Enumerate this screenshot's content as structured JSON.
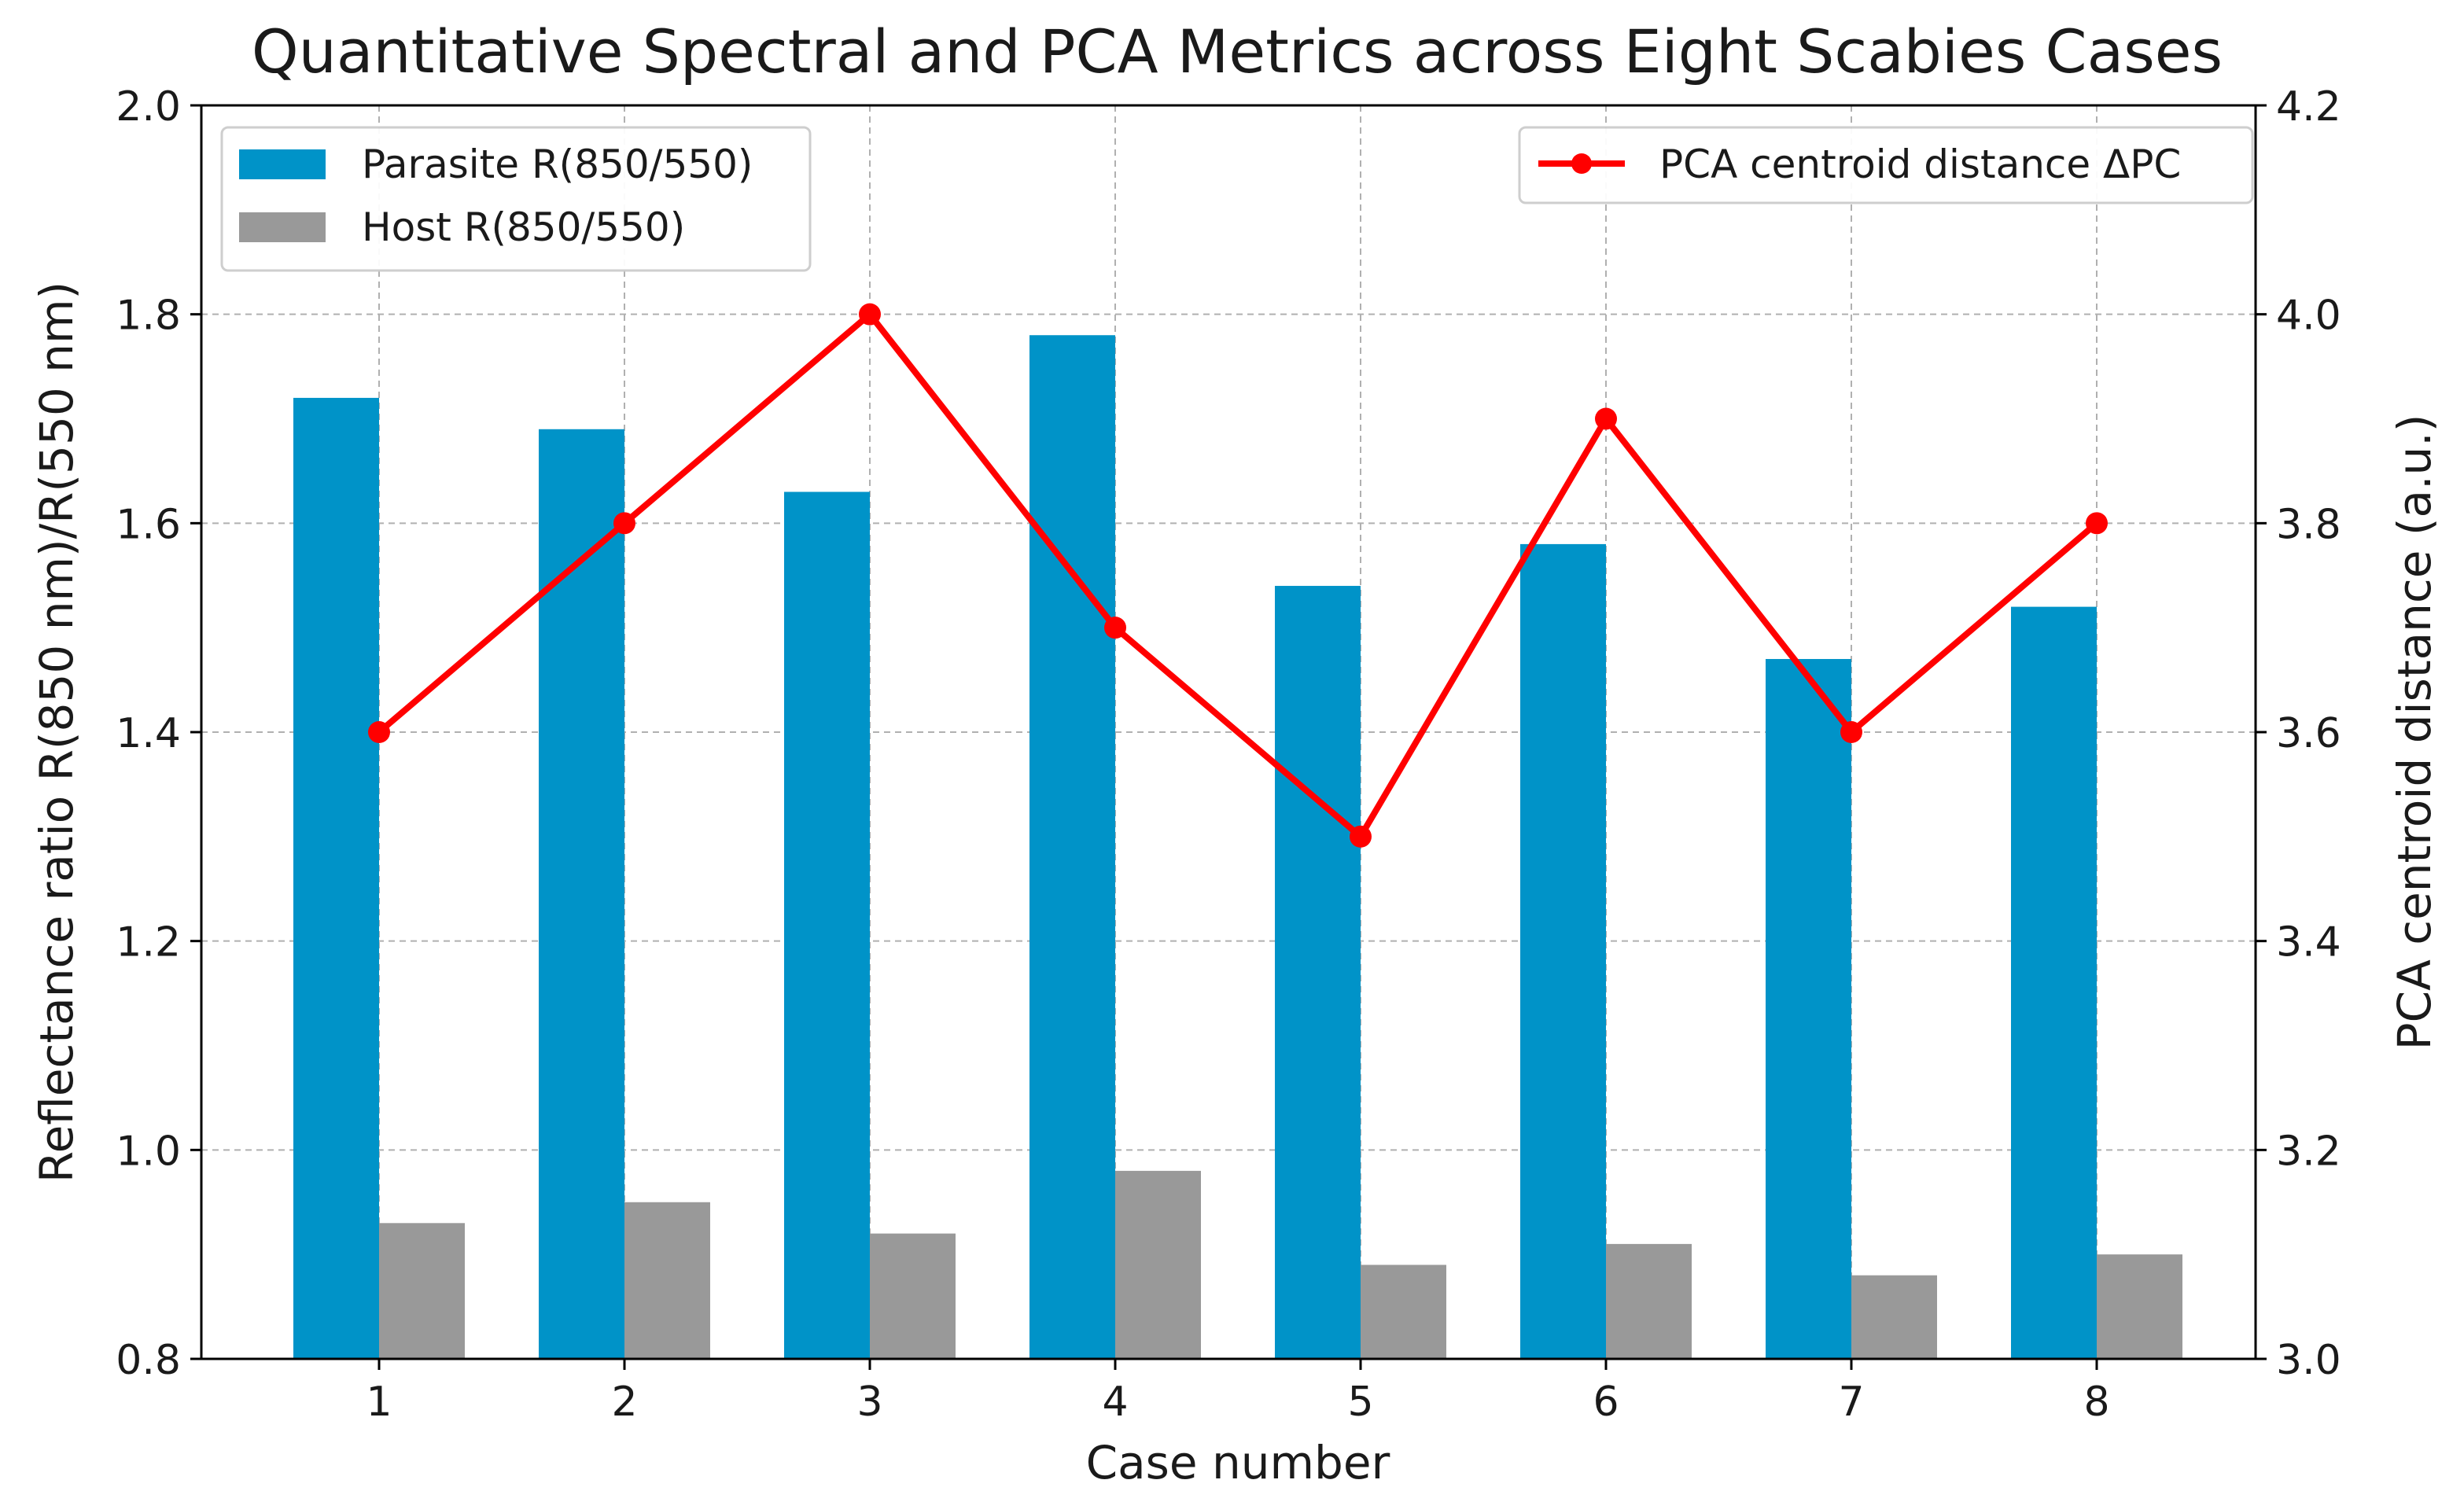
{
  "chart_data": {
    "type": "bar",
    "title": "Quantitative Spectral and PCA Metrics across Eight Scabies Cases",
    "xlabel": "Case number",
    "ylabel": "Reflectance ratio R(850 nm)/R(550 nm)",
    "y2label": "PCA centroid distance (a.u.)",
    "categories": [
      "1",
      "2",
      "3",
      "4",
      "5",
      "6",
      "7",
      "8"
    ],
    "ylim": [
      0.8,
      2.0
    ],
    "yticks": [
      "0.8",
      "1.0",
      "1.2",
      "1.4",
      "1.6",
      "1.8",
      "2.0"
    ],
    "ytick_values": [
      0.8,
      1.0,
      1.2,
      1.4,
      1.6,
      1.8,
      2.0
    ],
    "y2lim": [
      3.0,
      4.2
    ],
    "y2ticks": [
      "3.0",
      "3.2",
      "3.4",
      "3.6",
      "3.8",
      "4.0",
      "4.2"
    ],
    "y2tick_values": [
      3.0,
      3.2,
      3.4,
      3.6,
      3.8,
      4.0,
      4.2
    ],
    "grid": true,
    "series": [
      {
        "name": "Parasite R(850/550)",
        "type": "bar",
        "axis": "left",
        "color": "#0093c8",
        "values": [
          1.72,
          1.69,
          1.63,
          1.78,
          1.54,
          1.58,
          1.47,
          1.52
        ]
      },
      {
        "name": "Host R(850/550)",
        "type": "bar",
        "axis": "left",
        "color": "#999999",
        "values": [
          0.93,
          0.95,
          0.92,
          0.98,
          0.89,
          0.91,
          0.88,
          0.9
        ]
      },
      {
        "name": "PCA centroid distance ΔPC",
        "type": "line",
        "axis": "right",
        "color": "#ff0000",
        "values": [
          3.6,
          3.8,
          4.0,
          3.7,
          3.5,
          3.9,
          3.6,
          3.8
        ]
      }
    ],
    "legend_left": {
      "placement": "top-left",
      "entries": [
        "Parasite R(850/550)",
        "Host R(850/550)"
      ]
    },
    "legend_right": {
      "placement": "top-right",
      "entries": [
        "PCA centroid distance ΔPC"
      ]
    }
  }
}
